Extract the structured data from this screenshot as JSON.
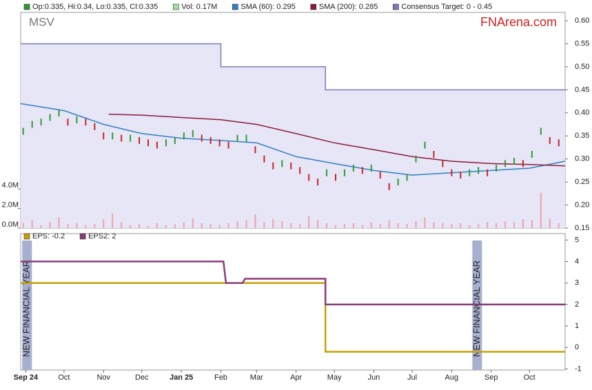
{
  "chart_data": [
    {
      "type": "price",
      "title": "MSV",
      "source": "FNArena.com",
      "xlim": [
        -4,
        423
      ],
      "ylim": [
        0.15,
        0.618
      ],
      "y2lim": [
        0,
        22
      ],
      "yticks": [
        0.15,
        {
          "value": 0.2,
          "label": "0.20"
        },
        0.25,
        {
          "value": 0.3,
          "label": "0.30"
        },
        0.35,
        {
          "value": 0.4,
          "label": "0.40"
        },
        0.45,
        {
          "value": 0.5,
          "label": "0.50"
        },
        0.55,
        {
          "value": 0.6,
          "label": "0.60"
        }
      ],
      "y2ticks": [
        {
          "value": 0,
          "label": "0.0M"
        },
        {
          "value": 2,
          "label": "2.0M"
        },
        {
          "value": 4,
          "label": "4.0M"
        }
      ],
      "series": [
        {
          "name": "Op:0.335, Hi:0.34, Lo:0.335, Cl:0.335",
          "kind": "price",
          "color": "#2e9a2e",
          "down_color": "#cc2222",
          "x": [
            -2,
            5,
            12,
            19,
            26,
            33,
            40,
            47,
            54,
            61,
            68,
            75,
            82,
            89,
            96,
            103,
            110,
            117,
            124,
            131,
            138,
            145,
            152,
            159,
            166,
            173,
            180,
            187,
            194,
            201,
            208,
            215,
            222,
            229,
            236,
            243,
            250,
            257,
            264,
            271,
            278,
            285,
            292,
            299,
            306,
            313,
            320,
            327,
            334,
            341,
            348,
            355,
            362,
            369,
            376,
            383,
            390,
            397,
            404,
            411,
            418
          ],
          "values": [
            0.36,
            0.375,
            0.38,
            0.39,
            0.4,
            0.38,
            0.385,
            0.38,
            0.37,
            0.35,
            0.35,
            0.345,
            0.345,
            0.34,
            0.335,
            0.33,
            0.335,
            0.34,
            0.35,
            0.355,
            0.345,
            0.34,
            0.335,
            0.33,
            0.345,
            0.345,
            0.32,
            0.3,
            0.285,
            0.29,
            0.285,
            0.275,
            0.26,
            0.25,
            0.27,
            0.26,
            0.27,
            0.28,
            0.275,
            0.28,
            0.265,
            0.24,
            0.25,
            0.26,
            0.3,
            0.33,
            0.31,
            0.29,
            0.27,
            0.265,
            0.27,
            0.275,
            0.27,
            0.28,
            0.29,
            0.295,
            0.29,
            0.31,
            0.36,
            0.34,
            0.335
          ]
        },
        {
          "name": "Vol: 0.17M",
          "kind": "volume",
          "axis": "y2",
          "color": "#9be39b",
          "bar_color": "#f4a0a0",
          "x": [
            -2,
            5,
            12,
            19,
            26,
            33,
            40,
            47,
            54,
            61,
            68,
            75,
            82,
            89,
            96,
            103,
            110,
            117,
            124,
            131,
            138,
            145,
            152,
            159,
            166,
            173,
            180,
            187,
            194,
            201,
            208,
            215,
            222,
            229,
            236,
            243,
            250,
            257,
            264,
            271,
            278,
            285,
            292,
            299,
            306,
            313,
            320,
            327,
            334,
            341,
            348,
            355,
            362,
            369,
            376,
            383,
            390,
            397,
            404,
            411,
            418
          ],
          "values": [
            0.5,
            0.8,
            0.3,
            0.6,
            1.1,
            0.4,
            0.5,
            0.3,
            0.4,
            0.9,
            1.5,
            0.6,
            0.3,
            0.4,
            0.2,
            0.5,
            0.3,
            0.4,
            0.6,
            1.0,
            0.5,
            0.4,
            0.3,
            0.5,
            0.7,
            0.8,
            1.4,
            0.6,
            0.9,
            0.7,
            0.5,
            0.4,
            1.2,
            0.8,
            0.5,
            0.3,
            0.4,
            0.5,
            0.3,
            0.6,
            0.4,
            0.8,
            0.5,
            0.4,
            0.7,
            1.1,
            0.6,
            0.5,
            0.4,
            0.5,
            0.3,
            0.4,
            0.6,
            0.5,
            0.7,
            0.6,
            0.9,
            0.8,
            3.6,
            1.0,
            0.5
          ]
        },
        {
          "name": "SMA (60): 0.295",
          "kind": "line",
          "color": "#2f7fc1",
          "x": [
            -4,
            30,
            61,
            91,
            122,
            153,
            181,
            212,
            242,
            273,
            303,
            334,
            365,
            395,
            423
          ],
          "values": [
            0.42,
            0.405,
            0.375,
            0.355,
            0.345,
            0.34,
            0.335,
            0.305,
            0.29,
            0.275,
            0.265,
            0.27,
            0.275,
            0.28,
            0.295
          ]
        },
        {
          "name": "SMA (200): 0.285",
          "kind": "line",
          "color": "#8b1a3a",
          "x": [
            65,
            91,
            122,
            153,
            181,
            212,
            242,
            273,
            303,
            334,
            365,
            395,
            423
          ],
          "values": [
            0.397,
            0.395,
            0.39,
            0.385,
            0.375,
            0.355,
            0.335,
            0.32,
            0.305,
            0.295,
            0.29,
            0.288,
            0.285
          ]
        },
        {
          "name": "Consensus Target: 0 - 0.45",
          "kind": "area",
          "color": "#7a7ab8",
          "fill": "#e6e6f7",
          "x": [
            -4,
            153,
            153,
            235,
            235,
            423
          ],
          "values": [
            0.55,
            0.55,
            0.5,
            0.5,
            0.45,
            0.45
          ]
        }
      ]
    },
    {
      "type": "eps",
      "xlim": [
        -4,
        423
      ],
      "ylim": [
        -1.05,
        5.3
      ],
      "yticks": [
        -1,
        0,
        1,
        2,
        3,
        4,
        5
      ],
      "xticks": [
        {
          "value": 0,
          "label": "Sep 24"
        },
        {
          "value": 30,
          "label": "Oct"
        },
        {
          "value": 61,
          "label": "Nov"
        },
        {
          "value": 91,
          "label": "Dec"
        },
        {
          "value": 122,
          "label": "Jan 25"
        },
        {
          "value": 153,
          "label": "Feb"
        },
        {
          "value": 181,
          "label": "Mar"
        },
        {
          "value": 212,
          "label": "Apr"
        },
        {
          "value": 242,
          "label": "May"
        },
        {
          "value": 273,
          "label": "Jun"
        },
        {
          "value": 303,
          "label": "Jul"
        },
        {
          "value": 334,
          "label": "Aug"
        },
        {
          "value": 365,
          "label": "Sep"
        },
        {
          "value": 395,
          "label": "Oct"
        }
      ],
      "annotations": [
        {
          "x": 1,
          "text": "NEW FINANCIAL YEAR"
        },
        {
          "x": 354,
          "text": "NEW FINANCIAL YEAR"
        }
      ],
      "series": [
        {
          "name": "EPS: -0.2",
          "kind": "line",
          "color": "#c9a000",
          "x": [
            -4,
            235,
            235,
            423
          ],
          "values": [
            3,
            3,
            -0.2,
            -0.2
          ]
        },
        {
          "name": "EPS2: 2",
          "kind": "line",
          "color": "#8a3a78",
          "x": [
            -4,
            155,
            157,
            170,
            172,
            235,
            235,
            423
          ],
          "values": [
            4,
            4,
            3,
            3,
            3.2,
            3.2,
            2,
            2
          ]
        }
      ]
    }
  ]
}
